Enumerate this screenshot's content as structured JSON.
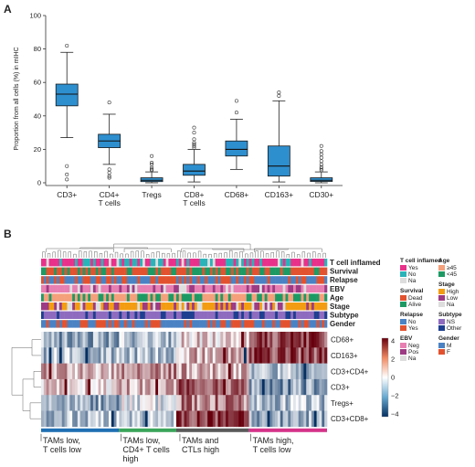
{
  "panel_a": {
    "letter": "A",
    "chart_data": {
      "type": "box",
      "ylabel": "Proportion from all cells (%) in mIHC",
      "ylim": [
        0,
        100
      ],
      "yticks": [
        0,
        20,
        40,
        60,
        80,
        100
      ],
      "categories": [
        {
          "label": [
            "CD3+"
          ],
          "q1": 46,
          "median": 53,
          "q3": 59,
          "wlo": 27,
          "whi": 78,
          "outliers": [
            82,
            10,
            2,
            5
          ]
        },
        {
          "label": [
            "CD4+",
            "T cells"
          ],
          "q1": 21,
          "median": 25,
          "q3": 29,
          "wlo": 11,
          "whi": 41,
          "outliers": [
            48,
            8,
            6,
            4,
            3
          ]
        },
        {
          "label": [
            "Tregs"
          ],
          "q1": 0.7,
          "median": 1.5,
          "q3": 3,
          "wlo": 0,
          "whi": 6.5,
          "outliers": [
            7.5,
            8,
            9,
            11,
            12,
            16
          ]
        },
        {
          "label": [
            "CD8+",
            "T cells"
          ],
          "q1": 4.5,
          "median": 7,
          "q3": 11,
          "wlo": 0.5,
          "whi": 20,
          "outliers": [
            21,
            22,
            23,
            24,
            26,
            30,
            33
          ]
        },
        {
          "label": [
            "CD68+"
          ],
          "q1": 16,
          "median": 20,
          "q3": 25,
          "wlo": 8,
          "whi": 38,
          "outliers": [
            42,
            49
          ]
        },
        {
          "label": [
            "CD163+"
          ],
          "q1": 4,
          "median": 10,
          "q3": 22,
          "wlo": 0.5,
          "whi": 49,
          "outliers": [
            52,
            54
          ]
        },
        {
          "label": [
            "CD30+"
          ],
          "q1": 0.8,
          "median": 1.5,
          "q3": 3,
          "wlo": 0,
          "whi": 6.5,
          "outliers": [
            7.5,
            8.5,
            9.5,
            11,
            13,
            15,
            17,
            19,
            22
          ]
        }
      ],
      "box_color": "#2e8fcf"
    }
  },
  "panel_b": {
    "letter": "B",
    "tracks": [
      {
        "name": "T cell inflamed",
        "colors": [
          "#e8318a",
          "#2ab3b8",
          "#dddddd"
        ]
      },
      {
        "name": "Survival",
        "colors": [
          "#e2522f",
          "#1d9a64"
        ]
      },
      {
        "name": "Relapse",
        "colors": [
          "#4a82c4",
          "#e2522f"
        ]
      },
      {
        "name": "EBV",
        "colors": [
          "#e77fb2",
          "#9d3b84",
          "#dddddd"
        ]
      },
      {
        "name": "Age",
        "colors": [
          "#f4a07b",
          "#1d9a64"
        ]
      },
      {
        "name": "Stage",
        "colors": [
          "#f39c12",
          "#9d3b84",
          "#dddddd"
        ]
      },
      {
        "name": "Subtype",
        "colors": [
          "#8e6bbf",
          "#1e3f8f"
        ]
      },
      {
        "name": "Gender",
        "colors": [
          "#4a82c4",
          "#e2522f"
        ]
      }
    ],
    "rows": [
      "CD68+",
      "CD163+",
      "CD3+CD4+",
      "CD3+",
      "Tregs+",
      "CD3+CD8+"
    ],
    "colorbar": {
      "ticks": [
        "4",
        "2",
        "0",
        "−2",
        "−4"
      ]
    },
    "clusters": [
      {
        "lines": [
          "TAMs low,",
          "T cells low"
        ],
        "color": "#1f6fb2"
      },
      {
        "lines": [
          "TAMs low,",
          "CD4+ T cells",
          "high"
        ],
        "color": "#3aa55a"
      },
      {
        "lines": [
          "TAMs and",
          "CTLs high"
        ],
        "color": "#5a5a5a"
      },
      {
        "lines": [
          "TAMs high,",
          "T cells low"
        ],
        "color": "#d6338a"
      }
    ],
    "legends": [
      {
        "title": "T cell inflamed",
        "items": [
          {
            "label": "Yes",
            "color": "#e8318a"
          },
          {
            "label": "No",
            "color": "#2ab3b8"
          },
          {
            "label": "Na",
            "color": "#dddddd"
          }
        ]
      },
      {
        "title": "Survival",
        "items": [
          {
            "label": "Dead",
            "color": "#e2522f"
          },
          {
            "label": "Alive",
            "color": "#1d9a64"
          }
        ]
      },
      {
        "title": "Relapse",
        "items": [
          {
            "label": "No",
            "color": "#4a82c4"
          },
          {
            "label": "Yes",
            "color": "#e2522f"
          }
        ]
      },
      {
        "title": "EBV",
        "items": [
          {
            "label": "Neg",
            "color": "#e77fb2"
          },
          {
            "label": "Pos",
            "color": "#9d3b84"
          },
          {
            "label": "Na",
            "color": "#dddddd"
          }
        ]
      },
      {
        "title": "Age",
        "items": [
          {
            "label": "≥45",
            "color": "#f4a07b"
          },
          {
            "label": "<45",
            "color": "#1d9a64"
          }
        ]
      },
      {
        "title": "Stage",
        "items": [
          {
            "label": "High",
            "color": "#f39c12"
          },
          {
            "label": "Low",
            "color": "#9d3b84"
          },
          {
            "label": "Na",
            "color": "#dddddd"
          }
        ]
      },
      {
        "title": "Subtype",
        "items": [
          {
            "label": "NS",
            "color": "#8e6bbf"
          },
          {
            "label": "Other",
            "color": "#1e3f8f"
          }
        ]
      },
      {
        "title": "Gender",
        "items": [
          {
            "label": "M",
            "color": "#4a82c4"
          },
          {
            "label": "F",
            "color": "#e2522f"
          }
        ]
      }
    ]
  }
}
